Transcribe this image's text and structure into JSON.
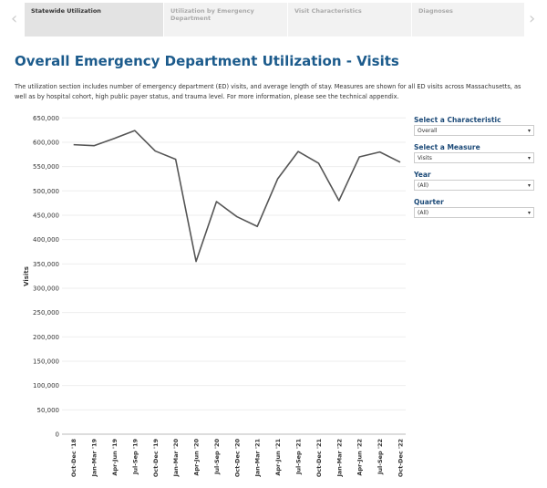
{
  "tabs": [
    {
      "label": "Statewide Utilization",
      "active": true
    },
    {
      "label": "Utilization by Emergency Department"
    },
    {
      "label": "Visit Characteristics"
    },
    {
      "label": "Diagnoses"
    }
  ],
  "nav": {
    "prev": "‹",
    "next": "›"
  },
  "title": "Overall Emergency Department Utilization - Visits",
  "description": "The utilization section includes number of emergency department (ED) visits, and average length of stay. Measures are shown for all ED visits across Massachusetts, as well as by hospital cohort, high public payer status, and trauma level. For more information, please see the technical appendix.",
  "filters": [
    {
      "label": "Select a Characteristic",
      "value": "Overall"
    },
    {
      "label": "Select a Measure",
      "value": "Visits"
    },
    {
      "label": "Year",
      "value": "(All)"
    },
    {
      "label": "Quarter",
      "value": "(All)"
    }
  ],
  "chart_data": {
    "type": "line",
    "ylabel": "Visits",
    "xlabel": "",
    "ylim": [
      0,
      650000
    ],
    "yticks": [
      "0",
      "50,000",
      "100,000",
      "150,000",
      "200,000",
      "250,000",
      "300,000",
      "350,000",
      "400,000",
      "450,000",
      "500,000",
      "550,000",
      "600,000",
      "650,000"
    ],
    "grid": true,
    "line_color": "#555555",
    "categories": [
      "Oct-Dec '18",
      "Jan-Mar '19",
      "Apr-Jun '19",
      "Jul-Sep '19",
      "Oct-Dec '19",
      "Jan-Mar '20",
      "Apr-Jun '20",
      "Jul-Sep '20",
      "Oct-Dec '20",
      "Jan-Mar '21",
      "Apr-Jun '21",
      "Jul-Sep '21",
      "Oct-Dec '21",
      "Jan-Mar '22",
      "Apr-Jun '22",
      "Jul-Sep '22",
      "Oct-Dec '22"
    ],
    "values": [
      595000,
      593000,
      608000,
      624000,
      582000,
      565000,
      355000,
      478000,
      447000,
      427000,
      525000,
      581000,
      557000,
      480000,
      570000,
      580000,
      559000
    ]
  }
}
